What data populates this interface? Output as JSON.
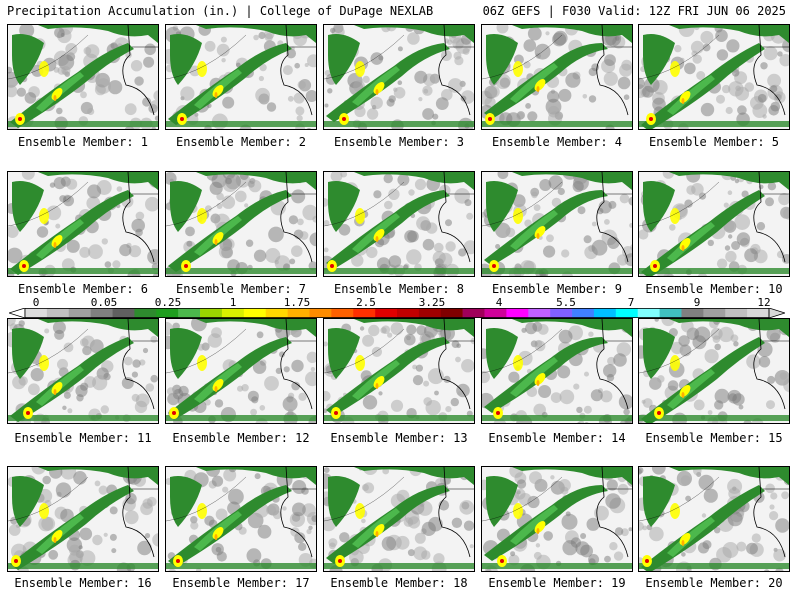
{
  "header": {
    "left_title": "Precipitation Accumulation (in.) | College of DuPage NEXLAB",
    "right_title": "06Z GEFS | F030 Valid: 12Z FRI JUN 06 2025"
  },
  "members": [
    {
      "label": "Ensemble Member: 1"
    },
    {
      "label": "Ensemble Member: 2"
    },
    {
      "label": "Ensemble Member: 3"
    },
    {
      "label": "Ensemble Member: 4"
    },
    {
      "label": "Ensemble Member: 5"
    },
    {
      "label": "Ensemble Member: 6"
    },
    {
      "label": "Ensemble Member: 7"
    },
    {
      "label": "Ensemble Member: 8"
    },
    {
      "label": "Ensemble Member: 9"
    },
    {
      "label": "Ensemble Member: 10"
    },
    {
      "label": "Ensemble Member: 11"
    },
    {
      "label": "Ensemble Member: 12"
    },
    {
      "label": "Ensemble Member: 13"
    },
    {
      "label": "Ensemble Member: 14"
    },
    {
      "label": "Ensemble Member: 15"
    },
    {
      "label": "Ensemble Member: 16"
    },
    {
      "label": "Ensemble Member: 17"
    },
    {
      "label": "Ensemble Member: 18"
    },
    {
      "label": "Ensemble Member: 19"
    },
    {
      "label": "Ensemble Member: 20"
    }
  ],
  "colorbar": {
    "tick_labels": [
      "0",
      "0.05",
      "0.25",
      "1",
      "1.75",
      "2.5",
      "3.25",
      "4",
      "5.5",
      "7",
      "9",
      "12"
    ],
    "colors": [
      "#dcdcdc",
      "#c0c0c0",
      "#a0a0a0",
      "#808080",
      "#606060",
      "#2e8b2e",
      "#1f9e1f",
      "#4cb84c",
      "#9ad400",
      "#d8f000",
      "#ffff00",
      "#ffd700",
      "#ffb000",
      "#ff8c00",
      "#ff6000",
      "#ff3000",
      "#e00000",
      "#c00000",
      "#a00000",
      "#800000",
      "#a0005a",
      "#d0009a",
      "#ff00ff",
      "#c060ff",
      "#8060ff",
      "#4080ff",
      "#00c0ff",
      "#00ffff",
      "#80ffff",
      "#40c0c0",
      "#808080",
      "#a0a0a0",
      "#c0c0c0",
      "#d8d8d8"
    ]
  },
  "map_colors": {
    "background": "#f3f3f3",
    "green": "#2e8b2e",
    "light_green": "#4cb84c",
    "yellow": "#ffff00",
    "orange": "#ffb000",
    "red": "#e00000",
    "gray": "#a8a8a8",
    "dark_gray": "#7a7a7a"
  }
}
